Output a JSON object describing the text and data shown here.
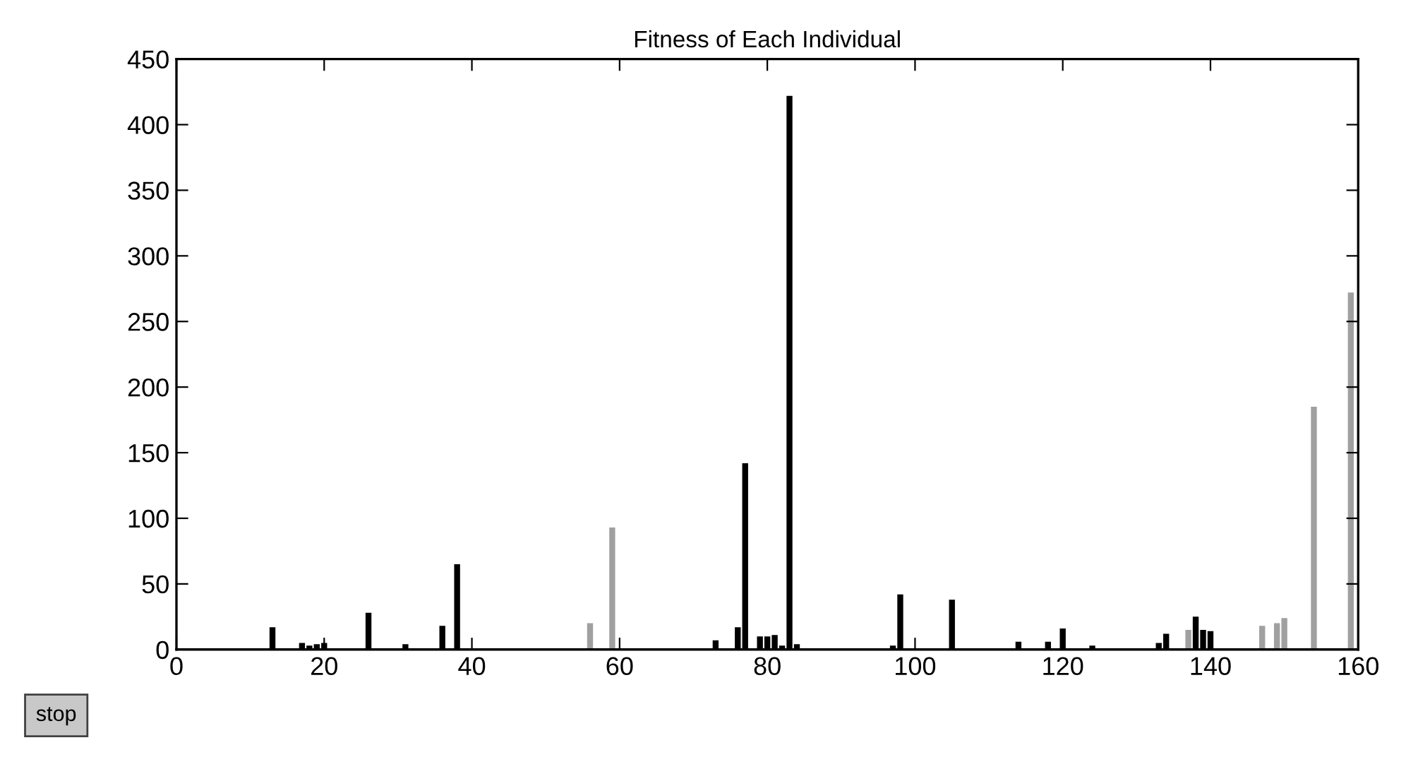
{
  "chart_data": {
    "type": "bar",
    "title": "Fitness of Each Individual",
    "x": [
      1,
      2,
      3,
      4,
      5,
      6,
      7,
      8,
      9,
      10,
      11,
      12,
      13,
      14,
      15,
      16,
      17,
      18,
      19,
      20,
      21,
      22,
      23,
      24,
      25,
      26,
      27,
      28,
      29,
      30,
      31,
      32,
      33,
      34,
      35,
      36,
      37,
      38,
      39,
      40,
      41,
      42,
      43,
      44,
      45,
      46,
      47,
      48,
      49,
      50,
      51,
      52,
      53,
      54,
      55,
      56,
      57,
      58,
      59,
      60,
      61,
      62,
      63,
      64,
      65,
      66,
      67,
      68,
      69,
      70,
      71,
      72,
      73,
      74,
      75,
      76,
      77,
      78,
      79,
      80,
      81,
      82,
      83,
      84,
      85,
      86,
      87,
      88,
      89,
      90,
      91,
      92,
      93,
      94,
      95,
      96,
      97,
      98,
      99,
      100,
      101,
      102,
      103,
      104,
      105,
      106,
      107,
      108,
      109,
      110,
      111,
      112,
      113,
      114,
      115,
      116,
      117,
      118,
      119,
      120,
      121,
      122,
      123,
      124,
      125,
      126,
      127,
      128,
      129,
      130,
      131,
      132,
      133,
      134,
      135,
      136,
      137,
      138,
      139,
      140,
      141,
      142,
      143,
      144,
      145,
      146,
      147,
      148,
      149,
      150,
      151,
      152,
      153,
      154,
      155,
      156,
      157,
      158,
      159,
      160
    ],
    "values": [
      0,
      0,
      1,
      0,
      1,
      0,
      0,
      0,
      0,
      1,
      1,
      1,
      17,
      1,
      0,
      1,
      5,
      3,
      4,
      5,
      1,
      0,
      1,
      1,
      1,
      28,
      1,
      0,
      1,
      1,
      4,
      0,
      1,
      1,
      1,
      18,
      1,
      65,
      1,
      0,
      0,
      0,
      0,
      1,
      0,
      0,
      0,
      0,
      1,
      0,
      0,
      0,
      0,
      0,
      1,
      20,
      1,
      1,
      93,
      1,
      1,
      1,
      1,
      1,
      1,
      1,
      1,
      1,
      1,
      1,
      1,
      1,
      7,
      1,
      1,
      17,
      142,
      1,
      10,
      10,
      11,
      3,
      422,
      4,
      1,
      1,
      1,
      1,
      1,
      1,
      1,
      1,
      1,
      1,
      1,
      1,
      3,
      42,
      1,
      1,
      1,
      1,
      1,
      1,
      38,
      1,
      1,
      1,
      1,
      1,
      1,
      1,
      1,
      6,
      1,
      1,
      1,
      6,
      1,
      16,
      1,
      1,
      1,
      3,
      1,
      1,
      1,
      1,
      1,
      1,
      1,
      1,
      5,
      12,
      1,
      1,
      15,
      25,
      15,
      14,
      1,
      1,
      1,
      1,
      1,
      1,
      18,
      1,
      20,
      24,
      1,
      1,
      1,
      185,
      1,
      1,
      1,
      1,
      272,
      1
    ],
    "colors": [
      "#000000",
      "#000000",
      "#000000",
      "#000000",
      "#000000",
      "#000000",
      "#000000",
      "#000000",
      "#000000",
      "#000000",
      "#000000",
      "#000000",
      "#000000",
      "#000000",
      "#000000",
      "#000000",
      "#000000",
      "#000000",
      "#000000",
      "#000000",
      "#000000",
      "#000000",
      "#000000",
      "#000000",
      "#000000",
      "#000000",
      "#000000",
      "#000000",
      "#000000",
      "#000000",
      "#000000",
      "#000000",
      "#000000",
      "#000000",
      "#000000",
      "#000000",
      "#000000",
      "#000000",
      "#000000",
      "#000000",
      "#000000",
      "#000000",
      "#000000",
      "#000000",
      "#000000",
      "#000000",
      "#000000",
      "#000000",
      "#000000",
      "#000000",
      "#000000",
      "#000000",
      "#000000",
      "#000000",
      "#000000",
      "#a0a0a0",
      "#000000",
      "#000000",
      "#a0a0a0",
      "#000000",
      "#000000",
      "#000000",
      "#000000",
      "#000000",
      "#000000",
      "#000000",
      "#000000",
      "#000000",
      "#000000",
      "#000000",
      "#000000",
      "#000000",
      "#000000",
      "#000000",
      "#000000",
      "#000000",
      "#000000",
      "#000000",
      "#000000",
      "#000000",
      "#000000",
      "#000000",
      "#000000",
      "#000000",
      "#000000",
      "#000000",
      "#000000",
      "#000000",
      "#000000",
      "#000000",
      "#000000",
      "#000000",
      "#000000",
      "#000000",
      "#000000",
      "#000000",
      "#000000",
      "#000000",
      "#000000",
      "#000000",
      "#000000",
      "#000000",
      "#000000",
      "#000000",
      "#000000",
      "#000000",
      "#000000",
      "#000000",
      "#000000",
      "#000000",
      "#000000",
      "#000000",
      "#000000",
      "#000000",
      "#000000",
      "#000000",
      "#000000",
      "#000000",
      "#000000",
      "#000000",
      "#000000",
      "#000000",
      "#000000",
      "#000000",
      "#000000",
      "#000000",
      "#000000",
      "#000000",
      "#000000",
      "#000000",
      "#000000",
      "#000000",
      "#000000",
      "#000000",
      "#000000",
      "#000000",
      "#a0a0a0",
      "#000000",
      "#000000",
      "#000000",
      "#000000",
      "#000000",
      "#000000",
      "#000000",
      "#000000",
      "#000000",
      "#a0a0a0",
      "#000000",
      "#a0a0a0",
      "#a0a0a0",
      "#000000",
      "#000000",
      "#000000",
      "#a0a0a0",
      "#000000",
      "#000000",
      "#000000",
      "#000000",
      "#a0a0a0",
      "#000000"
    ],
    "xlim": [
      0,
      160
    ],
    "xticks": [
      0,
      20,
      40,
      60,
      80,
      100,
      120,
      140,
      160
    ],
    "ylim": [
      0,
      450
    ],
    "yticks": [
      0,
      50,
      100,
      150,
      200,
      250,
      300,
      350,
      400,
      450
    ],
    "annotations": [
      "stop"
    ]
  }
}
